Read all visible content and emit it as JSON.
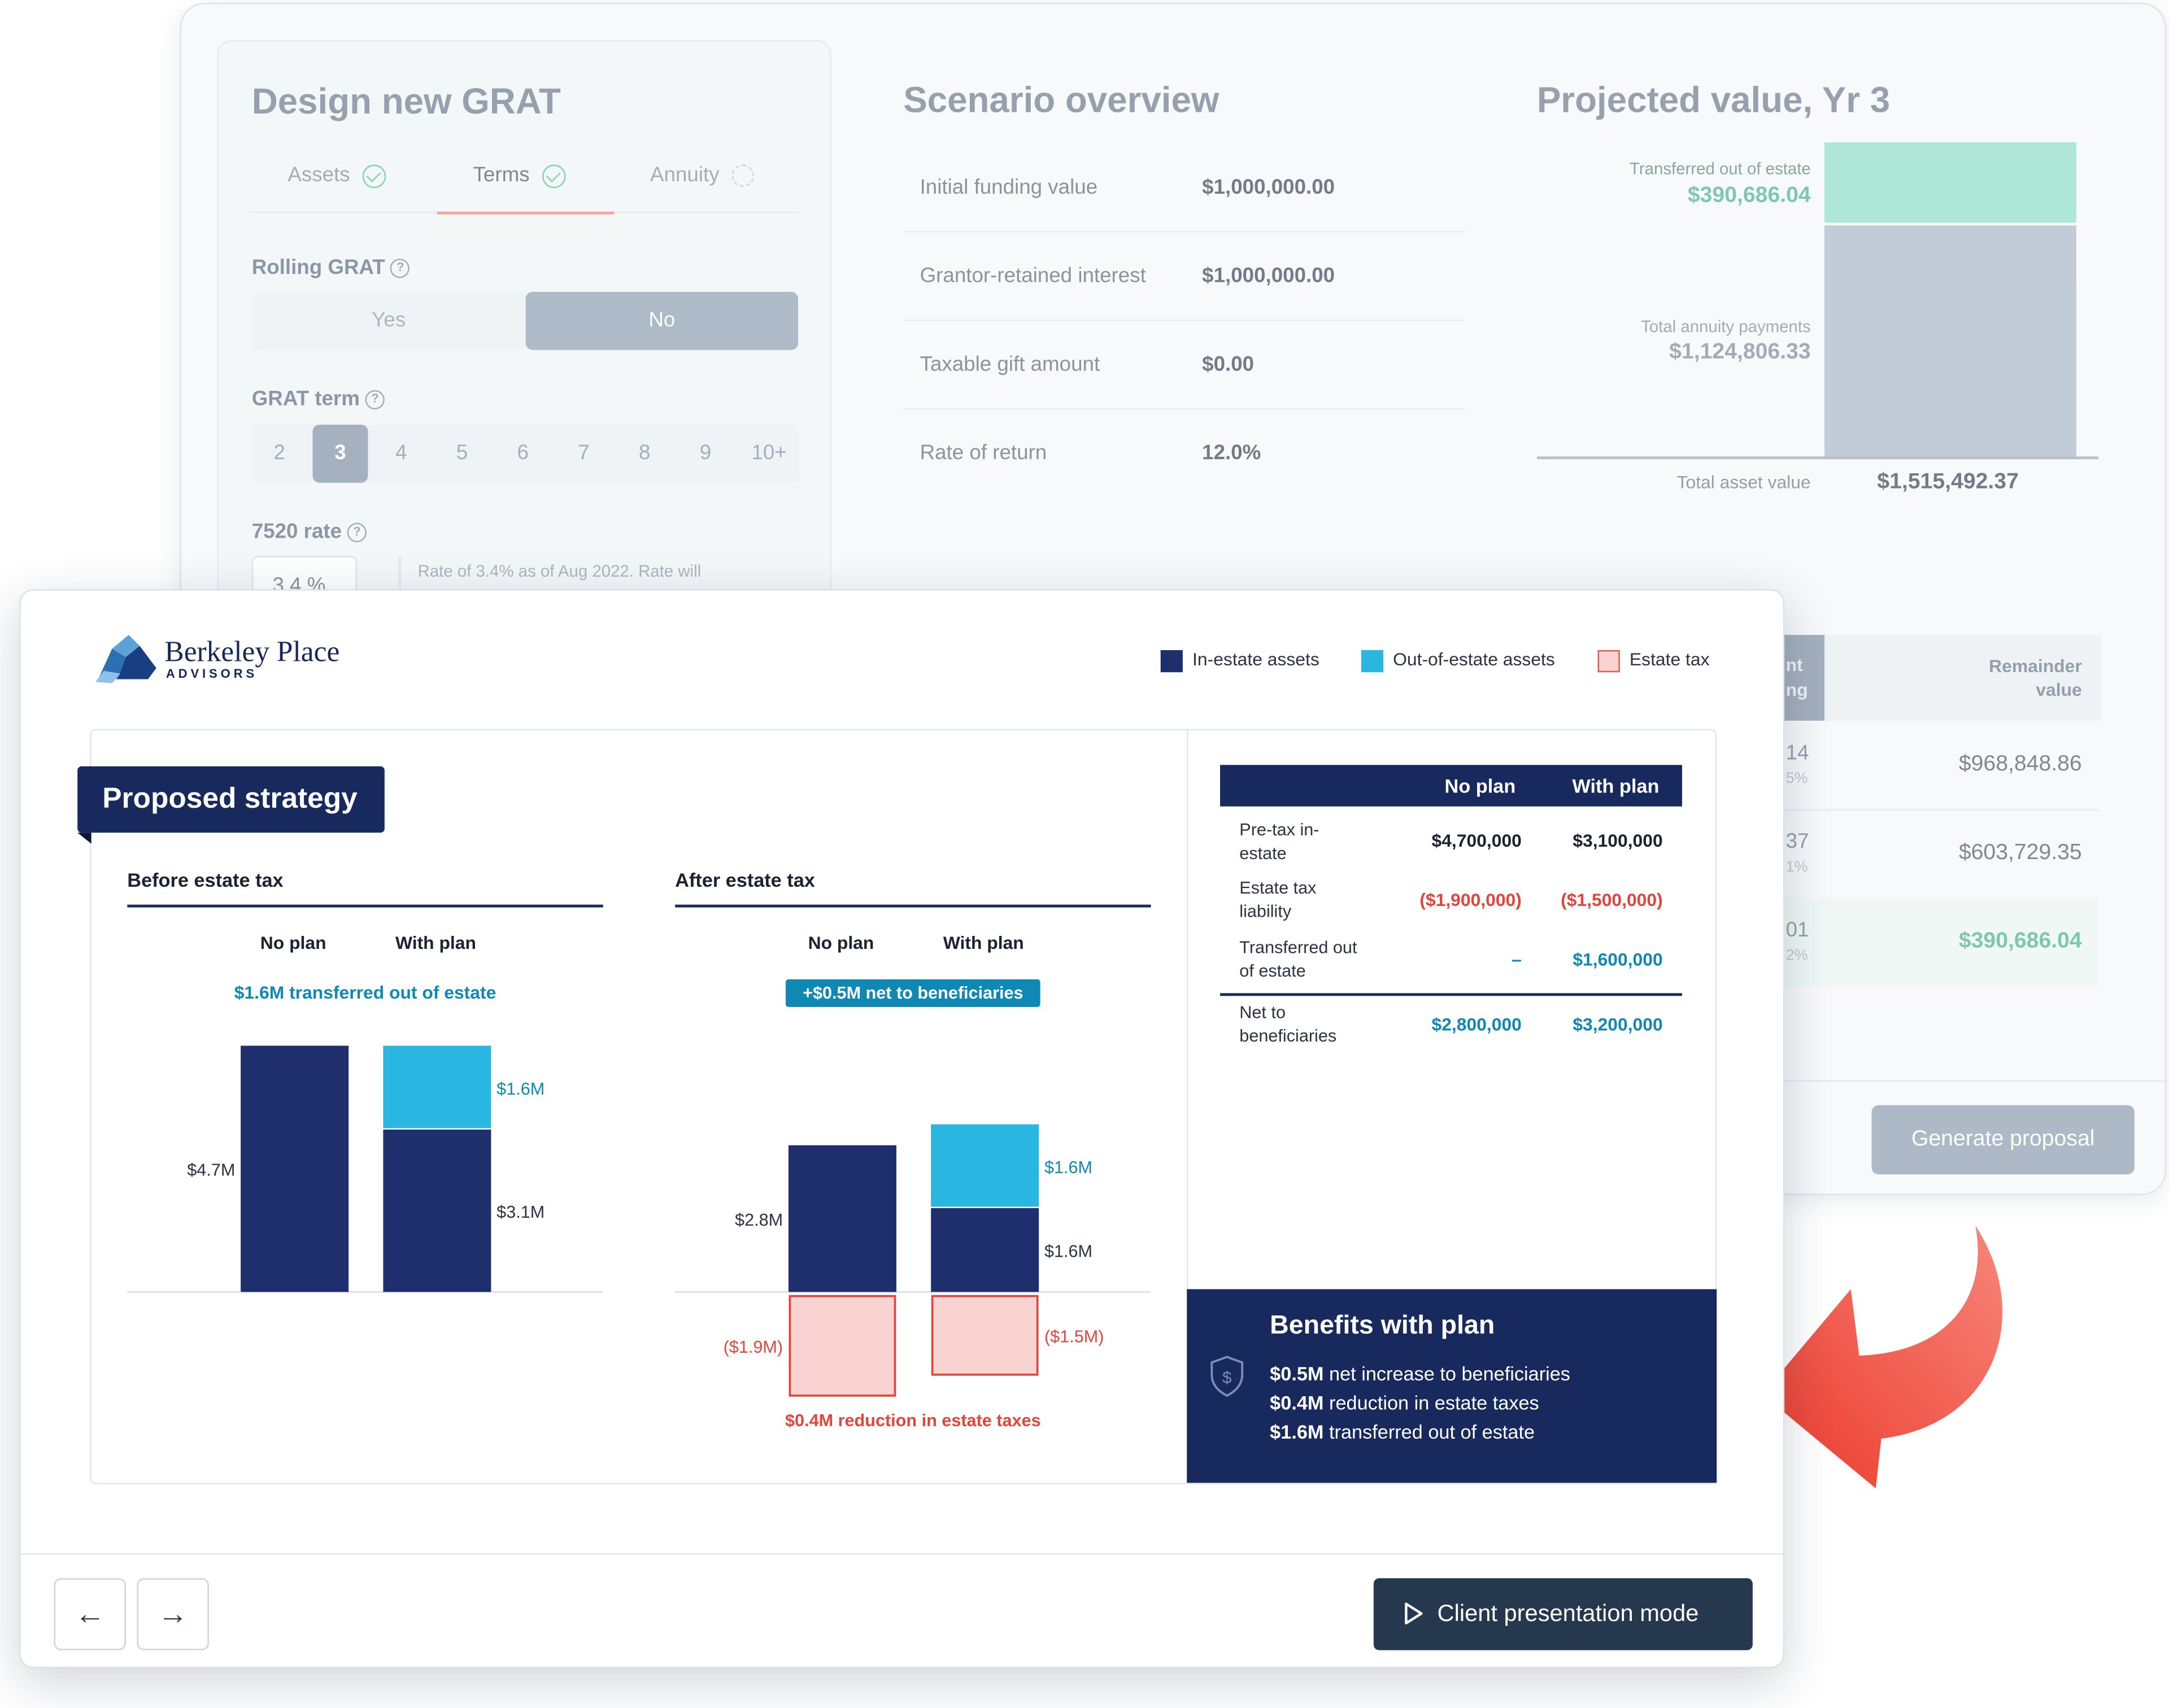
{
  "design": {
    "title": "Design new GRAT",
    "tabs": [
      "Assets",
      "Terms",
      "Annuity"
    ],
    "rolling_label": "Rolling GRAT",
    "yes": "Yes",
    "no": "No",
    "term_label": "GRAT term",
    "terms": [
      "2",
      "3",
      "4",
      "5",
      "6",
      "7",
      "8",
      "9",
      "10+"
    ],
    "selected_term": "3",
    "rate_label": "7520 rate",
    "rate_value": "3.4",
    "rate_unit": "%",
    "rate_note": "Rate of 3.4% as of Aug 2022. Rate will"
  },
  "scenario": {
    "title": "Scenario overview",
    "rows": [
      {
        "label": "Initial funding value",
        "value": "$1,000,000.00"
      },
      {
        "label": "Grantor-retained interest",
        "value": "$1,000,000.00"
      },
      {
        "label": "Taxable gift amount",
        "value": "$0.00"
      },
      {
        "label": "Rate of return",
        "value": "12.0%"
      }
    ]
  },
  "projected": {
    "title": "Projected value, Yr 3",
    "transferred_label": "Transferred out of estate",
    "transferred_value": "$390,686.04",
    "annuity_label": "Total annuity payments",
    "annuity_value": "$1,124,806.33",
    "total_label": "Total asset value",
    "total_value": "$1,515,492.37"
  },
  "remainder": {
    "col_partial_1": "nt",
    "col_partial_2": "ng",
    "header_1": "Remainder",
    "header_2": "value",
    "rows": [
      {
        "partial": "14",
        "sub": "5%",
        "value": "$968,848.86"
      },
      {
        "partial": "37",
        "sub": "1%",
        "value": "$603,729.35"
      },
      {
        "partial": "01",
        "sub": "2%",
        "value": "$390,686.04"
      }
    ]
  },
  "generate_label": "Generate proposal",
  "brand": {
    "name": "Berkeley Place",
    "sub": "ADVISORS"
  },
  "legend": [
    "In-estate assets",
    "Out-of-estate assets",
    "Estate tax"
  ],
  "colors": {
    "in_estate": "#1f2f6e",
    "out_estate": "#29b6e0",
    "estate_tax": "#f9d3d1",
    "tax_text": "#e2453c",
    "teal": "#0f88b4",
    "brand_navy": "#16275a"
  },
  "strategy_title": "Proposed strategy",
  "chart_data": [
    {
      "type": "bar",
      "title": "Before estate tax",
      "categories": [
        "No plan",
        "With plan"
      ],
      "annotation": "$1.6M transferred out of estate",
      "series": [
        {
          "name": "In-estate assets",
          "values": [
            4.7,
            3.1
          ],
          "labels": [
            "$4.7M",
            "$3.1M"
          ]
        },
        {
          "name": "Out-of-estate assets",
          "values": [
            0,
            1.6
          ],
          "labels": [
            "",
            "$1.6M"
          ]
        }
      ],
      "ylim": [
        0,
        4.7
      ]
    },
    {
      "type": "bar",
      "title": "After estate tax",
      "categories": [
        "No plan",
        "With plan"
      ],
      "annotation": "+$0.5M net to beneficiaries",
      "footer": "$0.4M reduction in estate taxes",
      "series": [
        {
          "name": "In-estate assets",
          "values": [
            2.8,
            1.6
          ],
          "labels": [
            "$2.8M",
            "$1.6M"
          ]
        },
        {
          "name": "Out-of-estate assets",
          "values": [
            0,
            1.6
          ],
          "labels": [
            "",
            "$1.6M"
          ]
        },
        {
          "name": "Estate tax",
          "values": [
            -1.9,
            -1.5
          ],
          "labels": [
            "($1.9M)",
            "($1.5M)"
          ]
        }
      ],
      "ylim": [
        -1.9,
        4.7
      ]
    }
  ],
  "summary_table": {
    "headers": [
      "",
      "No plan",
      "With plan"
    ],
    "rows": [
      {
        "label": "Pre-tax in-estate",
        "no_plan": "$4,700,000",
        "with_plan": "$3,100,000"
      },
      {
        "label": "Estate tax liability",
        "no_plan": "($1,900,000)",
        "with_plan": "($1,500,000)"
      },
      {
        "label": "Transferred out of estate",
        "no_plan": "–",
        "with_plan": "$1,600,000"
      },
      {
        "label": "Net to beneficiaries",
        "no_plan": "$2,800,000",
        "with_plan": "$3,200,000"
      }
    ]
  },
  "benefits": {
    "title": "Benefits with plan",
    "items": [
      {
        "amount": "$0.5M",
        "text": "net increase to beneficiaries"
      },
      {
        "amount": "$0.4M",
        "text": "reduction in estate taxes"
      },
      {
        "amount": "$1.6M",
        "text": "transferred out of estate"
      }
    ]
  },
  "footer": {
    "present_label": "Client presentation mode"
  }
}
